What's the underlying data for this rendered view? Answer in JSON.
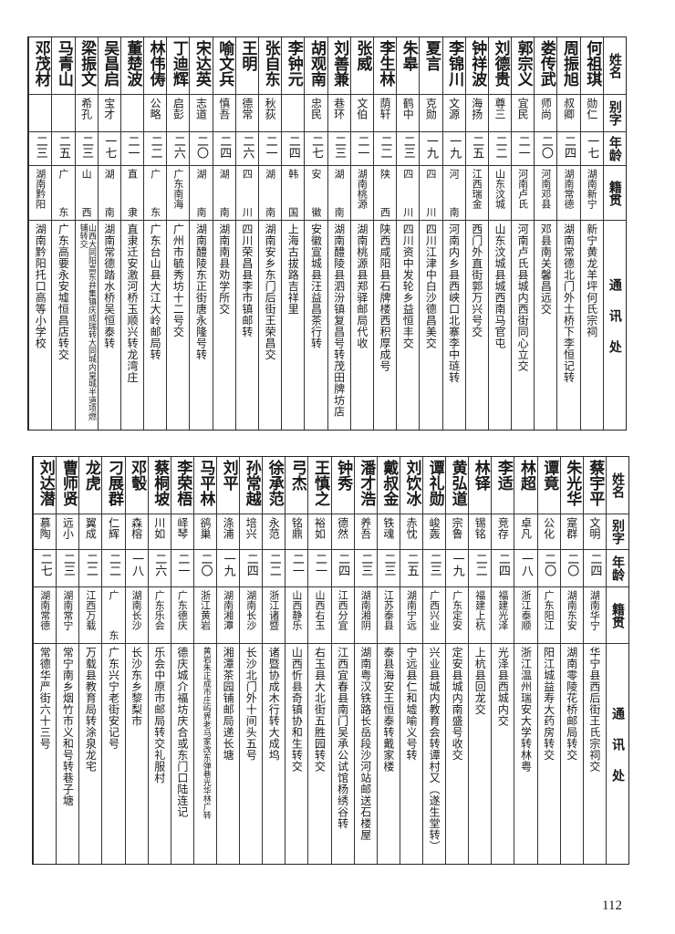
{
  "headers": {
    "name": "姓名",
    "alias": "别字",
    "age": "年龄",
    "native": "籍贯",
    "address": "通讯处"
  },
  "top_table": [
    {
      "name": "何祖琪",
      "alias": "勋仁",
      "age": "一七",
      "native": "湖南新宁",
      "address": "新宁黄龙羊坪何氏宗祠"
    },
    {
      "name": "周振旭",
      "alias": "叔卿",
      "age": "二四",
      "native": "湖南常德",
      "address": "湖南常德北门外士桥下李恒记转"
    },
    {
      "name": "娄传武",
      "alias": "师尚",
      "age": "二〇",
      "native": "河南邓县",
      "address": "邓县南关馨昌远交"
    },
    {
      "name": "郭宗义",
      "alias": "宜民",
      "age": "二一",
      "native": "河南卢氏",
      "address": "河南卢氏县城内西街同心立交"
    },
    {
      "name": "刘德贵",
      "alias": "尊三",
      "age": "二二",
      "native": "山东汶城",
      "address": "山东汶城县城西南马官屯"
    },
    {
      "name": "钟祥波",
      "alias": "海扬",
      "age": "二五",
      "native": "江西瑞金",
      "address": "西门外直街郭万兴号交"
    },
    {
      "name": "李锦川",
      "alias": "文源",
      "age": "一九",
      "native": "河南",
      "address": "河南内乡县西峡口北寨李中琏转"
    },
    {
      "name": "夏言",
      "alias": "克勋",
      "age": "一九",
      "native": "四川",
      "address": "四川江津中白沙德昌美交"
    },
    {
      "name": "朱皋",
      "alias": "鹤中",
      "age": "二三",
      "native": "四川",
      "address": "四川资中发轮乡益恒丰交"
    },
    {
      "name": "李生林",
      "alias": "荫轩",
      "age": "二二",
      "native": "陕西",
      "address": "陕西咸阳县石牌楼西积厚成号"
    },
    {
      "name": "张威",
      "alias": "文伯",
      "age": "二一",
      "native": "湖南桃源",
      "address": "湖南桃源县郑驿邮局代收"
    },
    {
      "name": "刘善兼",
      "alias": "巷环",
      "age": "二三",
      "native": "湖南",
      "address": "湖南醴陵县泗汾镇复昌号转茂田牌坊店"
    },
    {
      "name": "胡观南",
      "alias": "忠民",
      "age": "二七",
      "native": "安徽",
      "address": "安徽宣城县汪益昌茶行转"
    },
    {
      "name": "李钟元",
      "alias": "",
      "age": "二四",
      "native": "韩国",
      "address": "上海古拔路吉祥里"
    },
    {
      "name": "张自东",
      "alias": "秋荻",
      "age": "二一",
      "native": "湖南",
      "address": "湖南安乡东门后街王荣昌交"
    },
    {
      "name": "王明",
      "alias": "德常",
      "age": "二六",
      "native": "四川",
      "address": "四川荣昌县李市镇邮转"
    },
    {
      "name": "喻文兵",
      "alias": "慎吾",
      "age": "二四",
      "native": "湖南",
      "address": "湖南南县劝学所交"
    },
    {
      "name": "宋达英",
      "alias": "志道",
      "age": "二〇",
      "native": "湖南",
      "address": "湖南醴陵东正街唐永隆号转"
    },
    {
      "name": "丁迪辉",
      "alias": "启彭",
      "age": "二六",
      "native": "广东南海",
      "address": "广州市毓秀坊十二号交"
    },
    {
      "name": "林伟俦",
      "alias": "公略",
      "age": "二二",
      "native": "广东",
      "address": "广东台山县大江大岭邮局转"
    },
    {
      "name": "董楚波",
      "alias": "",
      "age": "二一",
      "native": "直隶",
      "address": "直隶迁安激河桥玉顺兴转龙湾庄"
    },
    {
      "name": "吴昌启",
      "alias": "宝才",
      "age": "一七",
      "native": "湖南",
      "address": "湖南常德踏水桥吴恒泰转"
    },
    {
      "name": "梁振文",
      "alias": "希孔",
      "age": "二三",
      "native": "山西",
      "address": "山西大同阳高东井集镇庆成瑞转大同城内皇城半道项燃铺转交",
      "small": true
    },
    {
      "name": "马青山",
      "alias": "",
      "age": "二五",
      "native": "广东",
      "address": "广东高要永安墟恒昌店转交"
    },
    {
      "name": "邓茂材",
      "alias": "",
      "age": "二三",
      "native": "湖南黔阳",
      "address": "湖南黔阳托口高等小学校"
    }
  ],
  "bottom_table": [
    {
      "name": "蔡宇平",
      "alias": "文明",
      "age": "二四",
      "native": "湖南华宁",
      "address": "华宁县西后街王氏宗祠交"
    },
    {
      "name": "朱光华",
      "alias": "寔群",
      "age": "二〇",
      "native": "湖南东安",
      "address": "湖南零陵花桥邮局转交"
    },
    {
      "name": "谭竟",
      "alias": "公化",
      "age": "二〇",
      "native": "广东阳江",
      "address": "阳江城益寿大药房转交"
    },
    {
      "name": "林超",
      "alias": "卓凡",
      "age": "一八",
      "native": "浙江泰顺",
      "address": "浙江温州瑞安大学转林粤"
    },
    {
      "name": "李适",
      "alias": "竞存",
      "age": "二四",
      "native": "福建光泽",
      "address": "光泽县西城内交"
    },
    {
      "name": "林铎",
      "alias": "锡铭",
      "age": "二二",
      "native": "福建上杭",
      "address": "上杭县回龙交"
    },
    {
      "name": "黄弘道",
      "alias": "宗鲁",
      "age": "一九",
      "native": "广东定安",
      "address": "定安县城内南盛号收交"
    },
    {
      "name": "谭礼勋",
      "alias": "峻轰",
      "age": "二三",
      "native": "广西兴业",
      "address": "兴业县城内教育会转谭村又（遂生堂转）"
    },
    {
      "name": "刘饮冰",
      "alias": "赤忱",
      "age": "二五",
      "native": "湖南宁远",
      "address": "宁远县仁和墟喻义号转"
    },
    {
      "name": "戴叔金",
      "alias": "铁魂",
      "age": "二三",
      "native": "江苏泰县",
      "address": "泰县海安王恒泰转戴家楼"
    },
    {
      "name": "潘才浩",
      "alias": "养吾",
      "age": "二三",
      "native": "湖南湘阴",
      "address": "湖南粤汉铁路长岳段沙河站邮送石楼屋"
    },
    {
      "name": "钟秀",
      "alias": "德然",
      "age": "二四",
      "native": "江西分宜",
      "address": "江西宜春县南门吴承公试馆杨绣谷转"
    },
    {
      "name": "王慎之",
      "alias": "裕如",
      "age": "二一",
      "native": "山西右玉",
      "address": "右玉县大北街五胜园转交"
    },
    {
      "name": "弓杰",
      "alias": "铭鼎",
      "age": "二一",
      "native": "山西静乐",
      "address": "山西忻县奇镇协和生转交"
    },
    {
      "name": "徐承范",
      "alias": "永范",
      "age": "二二",
      "native": "浙江诸暨",
      "address": "诸暨协成木行转大成坞"
    },
    {
      "name": "孙常越",
      "alias": "培兴",
      "age": "二四",
      "native": "湖南长沙",
      "address": "长沙北门外十间头五号"
    },
    {
      "name": "刘平",
      "alias": "涤浦",
      "age": "一九",
      "native": "湖南湘潭",
      "address": "湘潭茶园铺邮局递长塘"
    },
    {
      "name": "马平林",
      "alias": "鹆巢",
      "age": "二〇",
      "native": "浙江黄岩",
      "address": "黄岩朱正成市庄屿界老马家改东弹巷光华林广转",
      "small": true
    },
    {
      "name": "李荣梧",
      "alias": "峄琴",
      "age": "二一",
      "native": "广东德庆",
      "address": "德庆城介福坊庆合或东门口陆连记"
    },
    {
      "name": "蔡桐坡",
      "alias": "川如",
      "age": "二六",
      "native": "广东乐会",
      "address": "乐会中原市邮局转交礼服村"
    },
    {
      "name": "邓彀",
      "alias": "森榕",
      "age": "一八",
      "native": "湖南长沙",
      "address": "长沙东乡黎梨市"
    },
    {
      "name": "刁展群",
      "alias": "仁辉",
      "age": "二二",
      "native": "广东",
      "address": "广东兴宁老街安记号"
    },
    {
      "name": "龙虎",
      "alias": "翼成",
      "age": "二二",
      "native": "江西万载",
      "address": "万载县教育局转涂泉龙宅"
    },
    {
      "name": "曹师贤",
      "alias": "远小",
      "age": "二三",
      "native": "湖南常宁",
      "address": "常宁南乡烟竹市义和号转巷子塘"
    },
    {
      "name": "刘达潜",
      "alias": "慕陶",
      "age": "二七",
      "native": "湖南常德",
      "address": "常德华严街六十三号"
    }
  ],
  "page_number": "112"
}
